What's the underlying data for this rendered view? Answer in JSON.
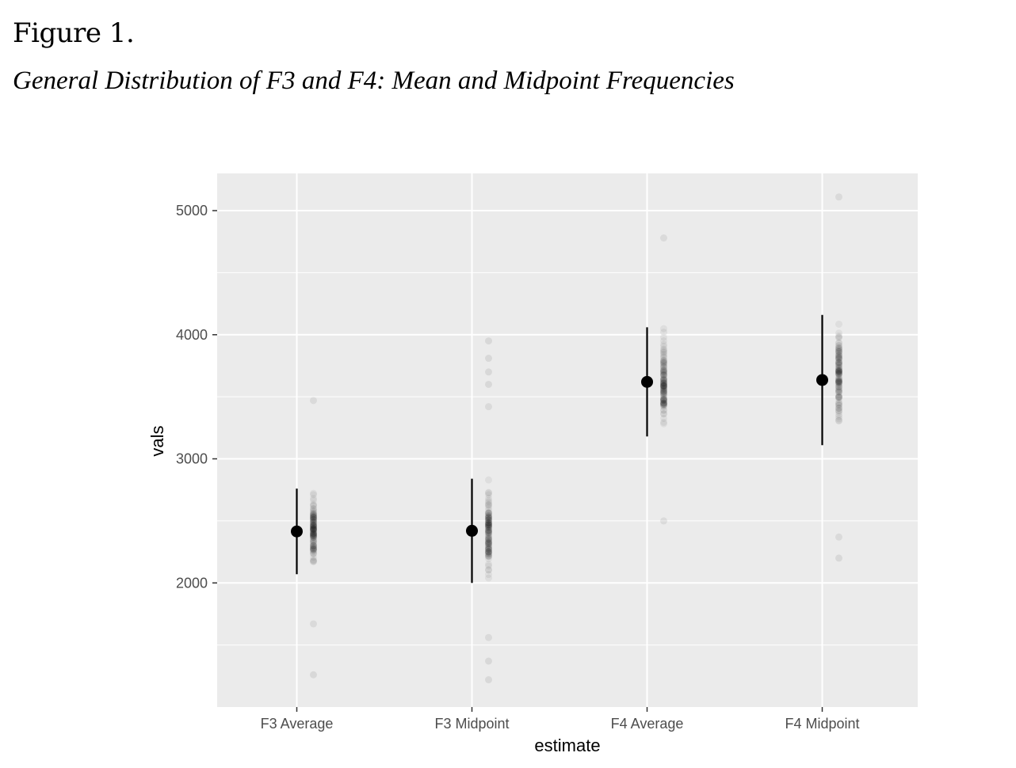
{
  "figure": {
    "number": "Figure 1.",
    "caption": "General Distribution of F3 and F4: Mean and Midpoint Frequencies"
  },
  "chart_data": {
    "type": "scatter",
    "xlabel": "estimate",
    "ylabel": "vals",
    "categories": [
      "F3 Average",
      "F3 Midpoint",
      "F4 Average",
      "F4 Midpoint"
    ],
    "ylim": [
      1000,
      5300
    ],
    "yticks": [
      2000,
      3000,
      4000,
      5000
    ],
    "ytick_labels": [
      "2000",
      "3000",
      "4000",
      "5000"
    ],
    "grid": true,
    "background": "#ebebeb",
    "summary": [
      {
        "category": "F3 Average",
        "mean": 2415,
        "lower": 2070,
        "upper": 2760
      },
      {
        "category": "F3 Midpoint",
        "mean": 2420,
        "lower": 2000,
        "upper": 2840
      },
      {
        "category": "F4 Average",
        "mean": 3620,
        "lower": 3180,
        "upper": 4060
      },
      {
        "category": "F4 Midpoint",
        "mean": 3635,
        "lower": 3110,
        "upper": 4160
      }
    ],
    "distributions": [
      {
        "category": "F3 Average",
        "min": 1670,
        "max": 3470,
        "outliers": [
          1260
        ],
        "n": 120
      },
      {
        "category": "F3 Midpoint",
        "min": 1560,
        "max": 3420,
        "outliers": [
          1220,
          1370,
          3600,
          3700,
          3810,
          3950
        ],
        "n": 120
      },
      {
        "category": "F4 Average",
        "min": 2500,
        "max": 4780,
        "outliers": [],
        "n": 120
      },
      {
        "category": "F4 Midpoint",
        "min": 2370,
        "max": 5110,
        "outliers": [
          2200
        ],
        "n": 120
      }
    ]
  }
}
